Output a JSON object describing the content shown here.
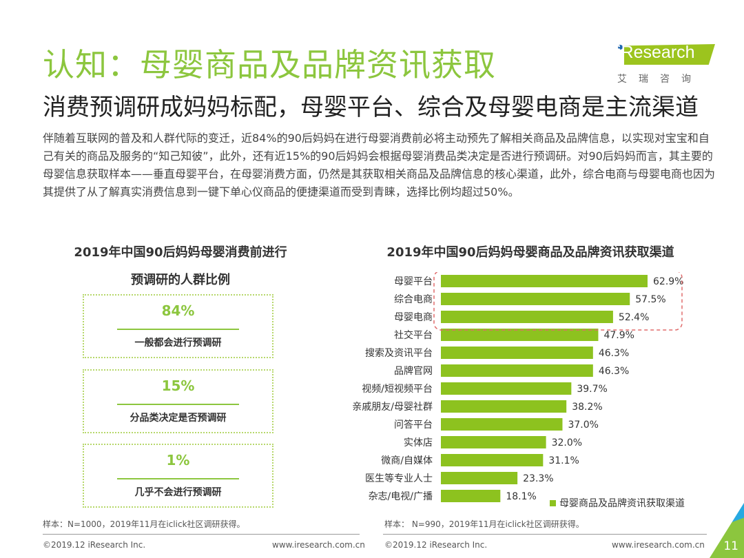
{
  "title": "认知：母婴商品及品牌资讯获取",
  "subtitle": "消费预调研成妈妈标配，母婴平台、综合及母婴电商是主流渠道",
  "body": "伴随着互联网的普及和人群代际的变迁，近84%的90后妈妈在进行母婴消费前必将主动预先了解相关商品及品牌信息，以实现对宝宝和自己有关的商品及服务的“知己知彼”，此外，还有近15%的90后妈妈会根据母婴消费品类决定是否进行预调研。对90后妈妈而言，其主要的母婴信息获取样本——垂直母婴平台，在母婴消费方面，仍然是其获取相关商品及品牌信息的核心渠道，此外，综合电商与母婴电商也因为其提供了从了解真实消费信息到一键下单心仪商品的便捷渠道而受到青睐，选择比例均超过50%。",
  "logo": {
    "text": "iResearch",
    "cn": "艾瑞咨询"
  },
  "left": {
    "title1": "2019年中国90后妈妈母婴消费前进行",
    "title2": "预调研的人群比例",
    "boxes": [
      {
        "pct": "84%",
        "label": "一般都会进行预调研"
      },
      {
        "pct": "15%",
        "label": "分品类决定是否预调研"
      },
      {
        "pct": "1%",
        "label": "几乎不会进行预调研"
      }
    ],
    "note": "样本：N=1000，2019年11月在iclick社区调研获得。"
  },
  "chart_data": {
    "type": "bar",
    "orientation": "horizontal",
    "title": "2019年中国90后妈妈母婴商品及品牌资讯获取渠道",
    "categories": [
      "母婴平台",
      "综合电商",
      "母婴电商",
      "社交平台",
      "搜索及资讯平台",
      "品牌官网",
      "视频/短视频平台",
      "亲戚朋友/母婴社群",
      "问答平台",
      "实体店",
      "微商/自媒体",
      "医生等专业人士",
      "杂志/电视/广播"
    ],
    "series": [
      {
        "name": "母婴商品及品牌资讯获取渠道",
        "values": [
          62.9,
          57.5,
          52.4,
          47.9,
          46.3,
          46.3,
          39.7,
          38.2,
          37.0,
          32.0,
          31.1,
          23.3,
          18.1
        ]
      }
    ],
    "labels": [
      "62.9%",
      "57.5%",
      "52.4%",
      "47.9%",
      "46.3%",
      "46.3%",
      "39.7%",
      "38.2%",
      "37.0%",
      "32.0%",
      "31.1%",
      "23.3%",
      "18.1%"
    ],
    "highlight": [
      "母婴平台",
      "综合电商",
      "母婴电商"
    ],
    "legend": "bottom-right",
    "color": "#8dc21f",
    "highlight_color": "#e06b6b"
  },
  "right_note": "样本： N=990，2019年11月在iclick社区调研获得。",
  "footer": {
    "copyright": "©2019.12 iResearch Inc.",
    "url": "www.iresearch.com.cn",
    "page": "11"
  }
}
